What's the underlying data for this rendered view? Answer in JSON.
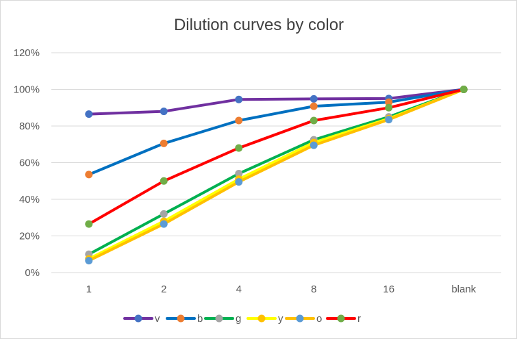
{
  "chart_data": {
    "type": "line",
    "title": "Dilution curves by color",
    "xlabel": "",
    "ylabel": "",
    "categories": [
      "1",
      "2",
      "4",
      "8",
      "16",
      "blank"
    ],
    "ylim": [
      0,
      120
    ],
    "yticks": [
      "0%",
      "20%",
      "40%",
      "60%",
      "80%",
      "100%",
      "120%"
    ],
    "grid": true,
    "legend": "bottom",
    "series": [
      {
        "name": "v",
        "line_color": "#7030A0",
        "marker_color": "#4472C4",
        "values": [
          86.5,
          88,
          94.5,
          94.8,
          95,
          100
        ]
      },
      {
        "name": "b",
        "line_color": "#0070C0",
        "marker_color": "#ED7D31",
        "values": [
          53.5,
          70.5,
          83,
          90.8,
          93,
          100
        ]
      },
      {
        "name": "g",
        "line_color": "#00B050",
        "marker_color": "#A5A5A5",
        "values": [
          10,
          32,
          54,
          72.5,
          85,
          100
        ]
      },
      {
        "name": "y",
        "line_color": "#FFFF00",
        "marker_color": "#FFC000",
        "values": [
          7.5,
          28,
          51,
          71,
          84,
          100
        ]
      },
      {
        "name": "o",
        "line_color": "#FFC000",
        "marker_color": "#5B9BD5",
        "values": [
          6.5,
          26.5,
          49.5,
          69.5,
          83.5,
          100
        ]
      },
      {
        "name": "r",
        "line_color": "#FF0000",
        "marker_color": "#70AD47",
        "values": [
          26.5,
          50,
          68,
          83,
          90,
          100
        ]
      }
    ]
  }
}
